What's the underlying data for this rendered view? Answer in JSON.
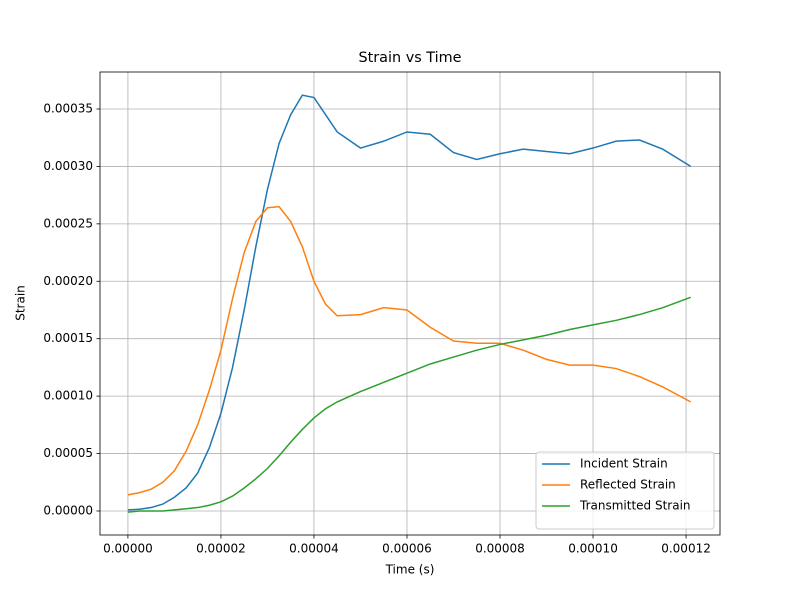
{
  "chart_data": {
    "type": "line",
    "title": "Strain vs Time",
    "x_label": "Time (s)",
    "y_label": "Strain",
    "x": [
      0,
      2.5e-06,
      5e-06,
      7.5e-06,
      1e-05,
      1.25e-05,
      1.5e-05,
      1.75e-05,
      2e-05,
      2.25e-05,
      2.5e-05,
      2.75e-05,
      3e-05,
      3.25e-05,
      3.5e-05,
      3.75e-05,
      4e-05,
      4.25e-05,
      4.5e-05,
      5e-05,
      5.5e-05,
      6e-05,
      6.5e-05,
      7e-05,
      7.5e-05,
      8e-05,
      8.5e-05,
      9e-05,
      9.5e-05,
      0.0001,
      0.000105,
      0.00011,
      0.000115,
      0.000121
    ],
    "series": [
      {
        "name": "Incident Strain",
        "color": "#1f77b4",
        "values": [
          1e-06,
          1.5e-06,
          3e-06,
          6e-06,
          1.2e-05,
          2e-05,
          3.3e-05,
          5.5e-05,
          8.5e-05,
          0.000125,
          0.000175,
          0.00023,
          0.00028,
          0.00032,
          0.000345,
          0.000362,
          0.00036,
          0.000345,
          0.00033,
          0.000316,
          0.000322,
          0.00033,
          0.000328,
          0.000312,
          0.000306,
          0.000311,
          0.000315,
          0.000313,
          0.000311,
          0.000316,
          0.000322,
          0.000323,
          0.000315,
          0.0003
        ]
      },
      {
        "name": "Reflected Strain",
        "color": "#ff7f0e",
        "values": [
          1.4e-05,
          1.6e-05,
          1.9e-05,
          2.5e-05,
          3.5e-05,
          5.2e-05,
          7.5e-05,
          0.000105,
          0.00014,
          0.000185,
          0.000225,
          0.000252,
          0.000264,
          0.000265,
          0.000252,
          0.00023,
          0.0002,
          0.00018,
          0.00017,
          0.000171,
          0.000177,
          0.000175,
          0.00016,
          0.000148,
          0.000146,
          0.000146,
          0.00014,
          0.000132,
          0.000127,
          0.000127,
          0.000124,
          0.000117,
          0.000108,
          9.5e-05
        ]
      },
      {
        "name": "Transmitted Strain",
        "color": "#2ca02c",
        "values": [
          -1e-06,
          0,
          0,
          0,
          1e-06,
          2e-06,
          3e-06,
          5e-06,
          8e-06,
          1.3e-05,
          2e-05,
          2.8e-05,
          3.7e-05,
          4.8e-05,
          6e-05,
          7.1e-05,
          8.1e-05,
          8.9e-05,
          9.5e-05,
          0.000104,
          0.000112,
          0.00012,
          0.000128,
          0.000134,
          0.00014,
          0.000145,
          0.000149,
          0.000153,
          0.000158,
          0.000162,
          0.000166,
          0.000171,
          0.000177,
          0.000186
        ]
      }
    ],
    "xlim": [
      -6e-06,
      0.0001273
    ],
    "xticks": [
      {
        "value": 0,
        "label": "0.00000"
      },
      {
        "value": 2e-05,
        "label": "0.00002"
      },
      {
        "value": 4e-05,
        "label": "0.00004"
      },
      {
        "value": 6e-05,
        "label": "0.00006"
      },
      {
        "value": 8e-05,
        "label": "0.00008"
      },
      {
        "value": 0.0001,
        "label": "0.00010"
      },
      {
        "value": 0.00012,
        "label": "0.00012"
      }
    ],
    "ylim": [
      -2.09e-05,
      0.0003822
    ],
    "yticks": [
      {
        "value": 0,
        "label": "0.00000"
      },
      {
        "value": 5e-05,
        "label": "0.00005"
      },
      {
        "value": 0.0001,
        "label": "0.00010"
      },
      {
        "value": 0.00015,
        "label": "0.00015"
      },
      {
        "value": 0.0002,
        "label": "0.00020"
      },
      {
        "value": 0.00025,
        "label": "0.00025"
      },
      {
        "value": 0.0003,
        "label": "0.00030"
      },
      {
        "value": 0.00035,
        "label": "0.00035"
      }
    ],
    "grid": true,
    "legend": "lower right"
  }
}
